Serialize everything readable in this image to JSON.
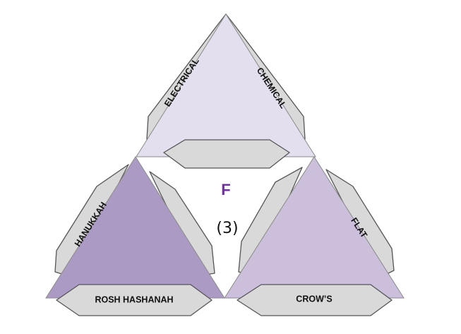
{
  "colors": {
    "top_triangle": "#e4dfee",
    "left_triangle": "#ab9bc4",
    "right_triangle": "#cbbfdb",
    "tab_fill": "#d9d9d9",
    "letter": "#7030a0"
  },
  "labels": {
    "electrical": "ELECTRICAL",
    "chemical": "CHEMICAL",
    "hanukkah": "HANUKKAH",
    "rosh_hashanah": "ROSH HASHANAH",
    "flat": "FLAT",
    "crows": "CROW’S"
  },
  "center": {
    "letter": "F",
    "count": "(3)"
  }
}
